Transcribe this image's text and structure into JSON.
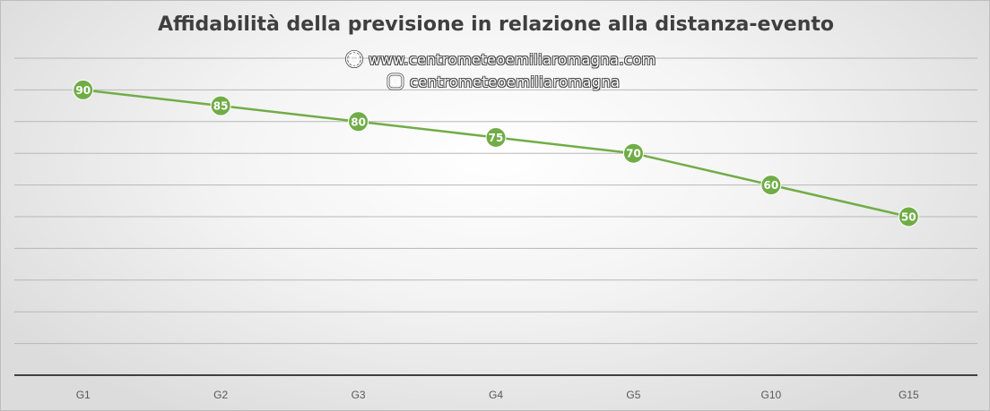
{
  "chart_data": {
    "type": "line",
    "title": "Affidabilità della previsione in relazione alla distanza-evento",
    "categories": [
      "G1",
      "G2",
      "G3",
      "G4",
      "G5",
      "G10",
      "G15"
    ],
    "values": [
      90,
      85,
      80,
      75,
      70,
      60,
      50
    ],
    "ylim": [
      0,
      100
    ],
    "grid": true,
    "data_labels": true,
    "line_color": "#70ad47",
    "legend": "none"
  },
  "watermark": {
    "website": "www.centrometeoemiliaromagna.com",
    "instagram": "centrometeoemiliaromagna",
    "website_icon": "globe-icon",
    "instagram_icon": "instagram-icon"
  }
}
